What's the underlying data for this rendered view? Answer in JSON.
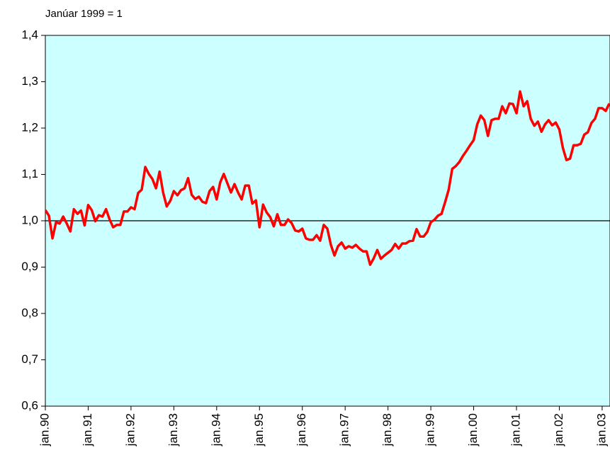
{
  "chart_data": {
    "type": "line",
    "subtitle": "Janúar 1999 = 1",
    "categories": [
      "jan.90",
      null,
      null,
      null,
      null,
      null,
      null,
      null,
      null,
      null,
      null,
      null,
      "jan.91",
      null,
      null,
      null,
      null,
      null,
      null,
      null,
      null,
      null,
      null,
      null,
      "jan.92",
      null,
      null,
      null,
      null,
      null,
      null,
      null,
      null,
      null,
      null,
      null,
      "jan.93",
      null,
      null,
      null,
      null,
      null,
      null,
      null,
      null,
      null,
      null,
      null,
      "jan.94",
      null,
      null,
      null,
      null,
      null,
      null,
      null,
      null,
      null,
      null,
      null,
      "jan.95",
      null,
      null,
      null,
      null,
      null,
      null,
      null,
      null,
      null,
      null,
      null,
      "jan.96",
      null,
      null,
      null,
      null,
      null,
      null,
      null,
      null,
      null,
      null,
      null,
      "jan.97",
      null,
      null,
      null,
      null,
      null,
      null,
      null,
      null,
      null,
      null,
      null,
      "jan.98",
      null,
      null,
      null,
      null,
      null,
      null,
      null,
      null,
      null,
      null,
      null,
      "jan.99",
      null,
      null,
      null,
      null,
      null,
      null,
      null,
      null,
      null,
      null,
      null,
      "jan.00",
      null,
      null,
      null,
      null,
      null,
      null,
      null,
      null,
      null,
      null,
      null,
      "jan.01",
      null,
      null,
      null,
      null,
      null,
      null,
      null,
      null,
      null,
      null,
      null,
      "jan.02",
      null,
      null,
      null,
      null,
      null,
      null,
      null,
      null,
      null,
      null,
      null,
      "jan.03",
      null,
      null
    ],
    "series": [
      {
        "color": "#ff0000",
        "values": [
          1.023,
          1.011,
          0.962,
          0.997,
          0.994,
          1.009,
          0.994,
          0.977,
          1.025,
          1.015,
          1.022,
          0.99,
          1.034,
          1.023,
          0.999,
          1.012,
          1.009,
          1.025,
          1.003,
          0.986,
          0.991,
          0.991,
          1.02,
          1.02,
          1.029,
          1.025,
          1.06,
          1.067,
          1.116,
          1.101,
          1.09,
          1.07,
          1.106,
          1.061,
          1.031,
          1.043,
          1.064,
          1.055,
          1.066,
          1.07,
          1.092,
          1.056,
          1.047,
          1.052,
          1.041,
          1.038,
          1.064,
          1.073,
          1.046,
          1.083,
          1.101,
          1.081,
          1.061,
          1.079,
          1.061,
          1.046,
          1.076,
          1.076,
          1.037,
          1.044,
          0.986,
          1.035,
          1.018,
          1.008,
          0.988,
          1.014,
          0.991,
          0.991,
          1.003,
          0.995,
          0.979,
          0.977,
          0.983,
          0.962,
          0.959,
          0.959,
          0.969,
          0.957,
          0.991,
          0.983,
          0.948,
          0.925,
          0.945,
          0.953,
          0.94,
          0.945,
          0.942,
          0.948,
          0.94,
          0.934,
          0.934,
          0.905,
          0.919,
          0.937,
          0.918,
          0.925,
          0.931,
          0.937,
          0.95,
          0.94,
          0.951,
          0.951,
          0.956,
          0.957,
          0.982,
          0.966,
          0.966,
          0.976,
          0.997,
          1.002,
          1.011,
          1.015,
          1.04,
          1.067,
          1.112,
          1.118,
          1.127,
          1.14,
          1.151,
          1.163,
          1.174,
          1.208,
          1.227,
          1.217,
          1.183,
          1.217,
          1.22,
          1.22,
          1.247,
          1.232,
          1.253,
          1.252,
          1.232,
          1.279,
          1.247,
          1.258,
          1.22,
          1.205,
          1.214,
          1.192,
          1.208,
          1.217,
          1.206,
          1.212,
          1.197,
          1.157,
          1.131,
          1.134,
          1.163,
          1.163,
          1.166,
          1.186,
          1.191,
          1.211,
          1.22,
          1.243,
          1.243,
          1.237,
          1.253
        ]
      }
    ],
    "hline": 1,
    "ylim": [
      0.6,
      1.4
    ],
    "yticks": [
      {
        "value": 0.6,
        "label": "0,6"
      },
      {
        "value": 0.7,
        "label": "0,7"
      },
      {
        "value": 0.8,
        "label": "0,8"
      },
      {
        "value": 0.9,
        "label": "0,9"
      },
      {
        "value": 1.0,
        "label": "1,0"
      },
      {
        "value": 1.1,
        "label": "1,1"
      },
      {
        "value": 1.2,
        "label": "1,2"
      },
      {
        "value": 1.3,
        "label": "1,3"
      },
      {
        "value": 1.4,
        "label": "1,4"
      }
    ],
    "background": "#ccffff"
  }
}
